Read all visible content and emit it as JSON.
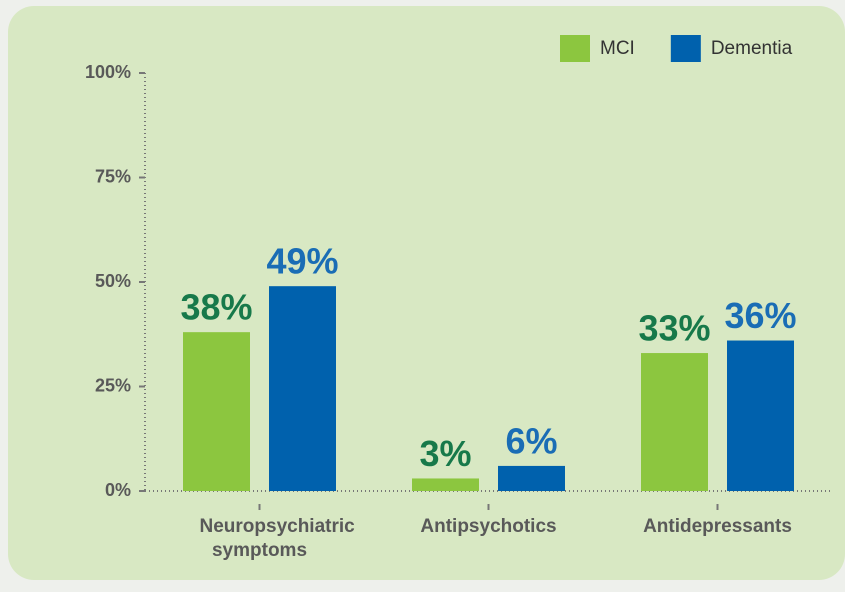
{
  "chart_data": {
    "type": "bar",
    "categories": [
      "Neuropsychiatric symptoms",
      "Antipsychotics",
      "Antidepressants"
    ],
    "series": [
      {
        "name": "MCI",
        "color": "#8cc63f",
        "label_color": "#17794a",
        "values": [
          38,
          3,
          33
        ],
        "value_labels": [
          "38%",
          "3%",
          "33%"
        ]
      },
      {
        "name": "Dementia",
        "color": "#0061ad",
        "label_color": "#1a6db5",
        "values": [
          49,
          6,
          36
        ],
        "value_labels": [
          "49%",
          "6%",
          "36%"
        ]
      }
    ],
    "ylim": [
      0,
      100
    ],
    "yticks": [
      {
        "value": 0,
        "label": "0%"
      },
      {
        "value": 25,
        "label": "25%"
      },
      {
        "value": 50,
        "label": "50%"
      },
      {
        "value": 75,
        "label": "75%"
      },
      {
        "value": 100,
        "label": "100%"
      }
    ],
    "legend": "top-right"
  }
}
